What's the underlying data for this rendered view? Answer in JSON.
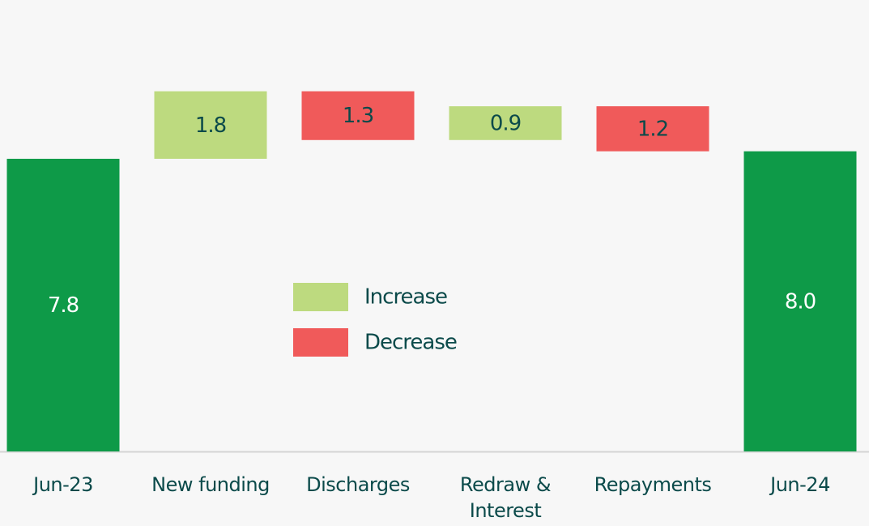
{
  "chart_data": {
    "type": "waterfall",
    "categories": [
      "Jun-23",
      "New funding",
      "Discharges",
      "Redraw & Interest",
      "Repayments",
      "Jun-24"
    ],
    "values": [
      7.8,
      1.8,
      -1.3,
      0.9,
      -1.2,
      8.0
    ],
    "value_labels": [
      "7.8",
      "1.8",
      "1.3",
      "0.9",
      "1.2",
      "8.0"
    ],
    "measures": [
      "total",
      "relative",
      "relative",
      "relative",
      "relative",
      "total"
    ],
    "total_color": "#0e9a48",
    "legend": [
      {
        "name": "Increase",
        "color": "#bdda7f"
      },
      {
        "name": "Decrease",
        "color": "#f05a5a"
      }
    ],
    "ylim": [
      0,
      12
    ]
  }
}
